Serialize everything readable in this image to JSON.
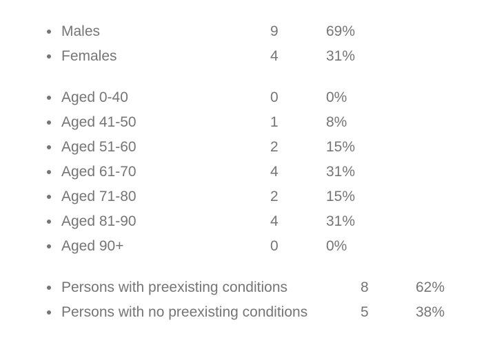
{
  "groups": {
    "sex": [
      {
        "label": "Males",
        "count": "9",
        "percent": "69%"
      },
      {
        "label": "Females",
        "count": "4",
        "percent": "31%"
      }
    ],
    "age": [
      {
        "label": "Aged 0-40",
        "count": "0",
        "percent": "0%"
      },
      {
        "label": "Aged 41-50",
        "count": "1",
        "percent": "8%"
      },
      {
        "label": "Aged 51-60",
        "count": "2",
        "percent": "15%"
      },
      {
        "label": "Aged 61-70",
        "count": "4",
        "percent": "31%"
      },
      {
        "label": "Aged 71-80",
        "count": "2",
        "percent": "15%"
      },
      {
        "label": "Aged 81-90",
        "count": "4",
        "percent": "31%"
      },
      {
        "label": "Aged 90+",
        "count": "0",
        "percent": "0%"
      }
    ],
    "conditions": [
      {
        "label": "Persons with preexisting conditions",
        "count": "8",
        "percent": "62%"
      },
      {
        "label": "Persons with no preexisting conditions",
        "count": "5",
        "percent": "38%"
      }
    ]
  }
}
